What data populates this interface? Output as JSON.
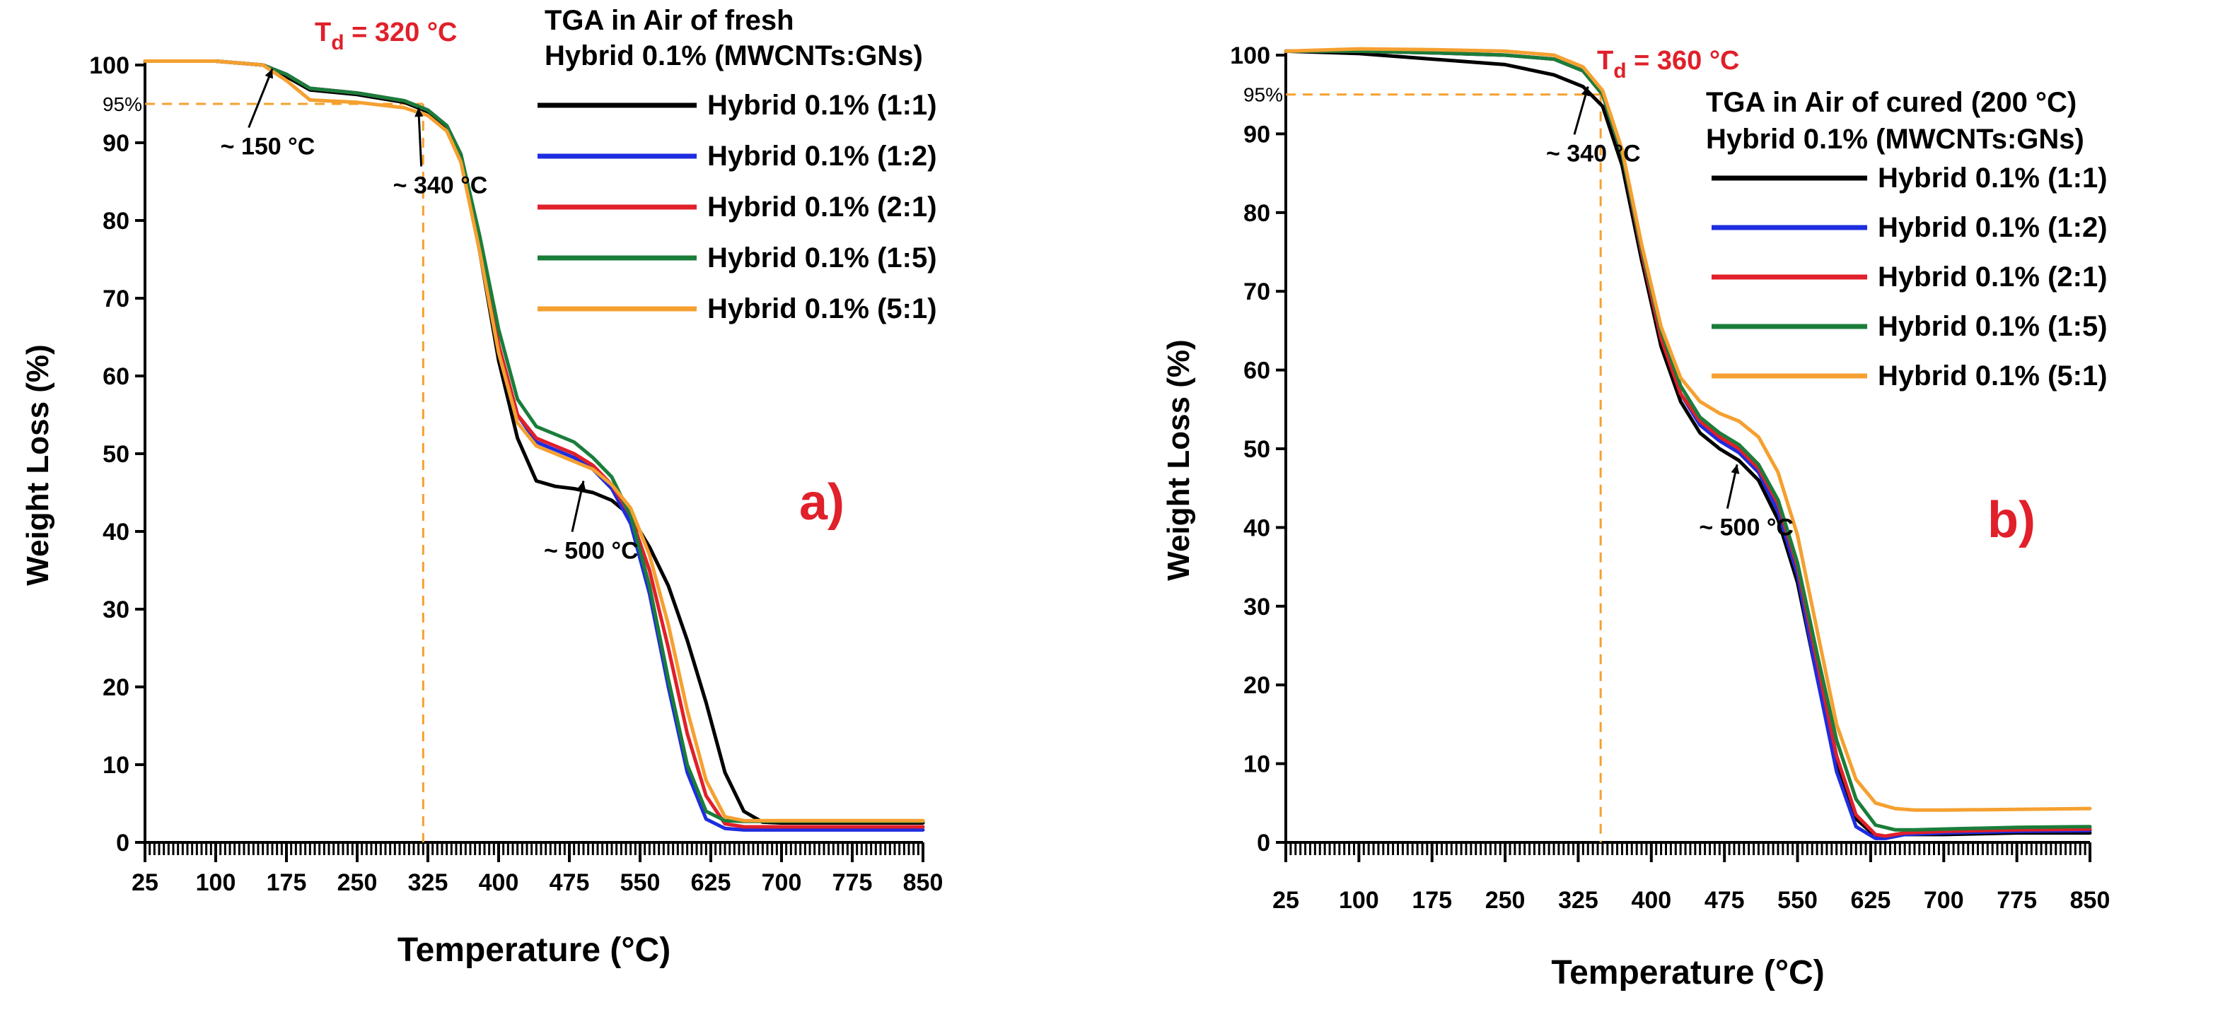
{
  "chart_data": [
    {
      "type": "line",
      "panel": "a)",
      "title": [
        "TGA in Air of fresh",
        "Hybrid 0.1% (MWCNTs:GNs)"
      ],
      "xlabel": "Temperature (°C)",
      "ylabel": "Weight Loss (%)",
      "xlim": [
        25,
        850
      ],
      "ylim": [
        0,
        100
      ],
      "xticks": [
        25,
        100,
        175,
        250,
        325,
        400,
        475,
        550,
        625,
        700,
        775,
        850
      ],
      "xtick_labels": [
        "25",
        "100",
        "175",
        "250",
        "325",
        "400",
        "475",
        "550",
        "625",
        "700",
        "775",
        "850"
      ],
      "yticks": [
        0,
        10,
        20,
        30,
        40,
        50,
        60,
        70,
        80,
        90,
        100
      ],
      "ytick_labels": [
        "0",
        "10",
        "20",
        "30",
        "40",
        "50",
        "60",
        "70",
        "80",
        "90",
        "100"
      ],
      "td_label": "T",
      "td_sub": "d",
      "td_value": " = 320 °C",
      "td_x": 320,
      "threshold_label": "95%",
      "threshold_y": 95,
      "annotations": [
        {
          "text": "~ 150 °C",
          "x": 105,
          "y": 88.5,
          "ax": 160,
          "ay": 99.5
        },
        {
          "text": "~ 340 °C",
          "x": 288,
          "y": 83.5,
          "ax": 315,
          "ay": 94.5
        },
        {
          "text": "~ 500 °C",
          "x": 448,
          "y": 36.5,
          "ax": 490,
          "ay": 46.5
        }
      ],
      "series": [
        {
          "name": "Hybrid 0.1% (1:1)",
          "color": "#000000",
          "x": [
            25,
            100,
            150,
            175,
            200,
            250,
            300,
            325,
            345,
            360,
            380,
            400,
            420,
            440,
            460,
            480,
            500,
            520,
            540,
            560,
            580,
            600,
            620,
            640,
            660,
            680,
            700,
            775,
            850
          ],
          "y": [
            100.5,
            100.5,
            100,
            98.5,
            96.8,
            96.2,
            95.2,
            94,
            92,
            88,
            76,
            62,
            52,
            46.5,
            45.8,
            45.5,
            45,
            44,
            42,
            38,
            33,
            26,
            18,
            9,
            4,
            2.6,
            2.5,
            2.5,
            2.5
          ]
        },
        {
          "name": "Hybrid 0.1% (1:2)",
          "color": "#1e2de0",
          "x": [
            25,
            100,
            150,
            175,
            200,
            250,
            300,
            325,
            345,
            360,
            380,
            400,
            420,
            440,
            460,
            480,
            500,
            520,
            540,
            560,
            580,
            600,
            620,
            640,
            660,
            700,
            775,
            850
          ],
          "y": [
            100.5,
            100.5,
            100,
            98.8,
            97,
            96.4,
            95.4,
            94.2,
            92.2,
            88.5,
            77,
            64,
            55,
            51.5,
            50.5,
            49.5,
            48,
            45.5,
            41,
            32,
            20,
            9,
            3,
            1.8,
            1.6,
            1.6,
            1.6,
            1.6
          ]
        },
        {
          "name": "Hybrid 0.1% (2:1)",
          "color": "#e0202a",
          "x": [
            25,
            100,
            150,
            175,
            200,
            250,
            300,
            325,
            345,
            360,
            380,
            400,
            420,
            440,
            460,
            480,
            500,
            520,
            540,
            560,
            580,
            600,
            620,
            640,
            660,
            700,
            775,
            850
          ],
          "y": [
            100.5,
            100.5,
            100,
            98.8,
            97,
            96.4,
            95.4,
            94.2,
            92.2,
            88.5,
            77,
            64,
            55,
            52,
            51,
            50,
            48.5,
            46,
            42,
            35,
            25,
            14,
            6,
            2.4,
            2,
            2,
            2,
            2
          ]
        },
        {
          "name": "Hybrid 0.1% (1:5)",
          "color": "#1a7d3a",
          "x": [
            25,
            100,
            150,
            175,
            200,
            250,
            300,
            325,
            345,
            360,
            380,
            400,
            420,
            440,
            460,
            480,
            500,
            520,
            540,
            560,
            580,
            600,
            620,
            640,
            660,
            700,
            775,
            850
          ],
          "y": [
            100.5,
            100.5,
            100,
            98.8,
            97,
            96.4,
            95.4,
            94.2,
            92.2,
            88.5,
            78,
            66,
            57,
            53.5,
            52.5,
            51.5,
            49.5,
            47,
            42,
            33,
            21,
            10,
            4,
            2.8,
            2.7,
            2.7,
            2.7,
            2.7
          ]
        },
        {
          "name": "Hybrid 0.1% (5:1)",
          "color": "#f5a030",
          "x": [
            25,
            100,
            150,
            175,
            200,
            250,
            300,
            325,
            345,
            360,
            380,
            400,
            420,
            440,
            460,
            480,
            500,
            520,
            540,
            560,
            580,
            600,
            620,
            640,
            660,
            700,
            775,
            850
          ],
          "y": [
            100.5,
            100.5,
            100,
            98,
            95.5,
            95.2,
            94.5,
            93.5,
            91.5,
            87.5,
            76,
            63,
            54,
            51,
            50,
            49,
            48,
            46,
            43,
            37,
            28,
            17,
            8,
            3.3,
            2.8,
            2.8,
            2.8,
            2.8
          ]
        }
      ]
    },
    {
      "type": "line",
      "panel": "b)",
      "title": [
        "TGA in Air of cured (200 °C)",
        "Hybrid 0.1% (MWCNTs:GNs)"
      ],
      "xlabel": "Temperature (°C)",
      "ylabel": "Weight Loss (%)",
      "xlim": [
        25,
        850
      ],
      "ylim": [
        0,
        100
      ],
      "xticks": [
        25,
        100,
        175,
        250,
        325,
        400,
        475,
        550,
        625,
        700,
        775,
        850
      ],
      "xtick_labels": [
        "25",
        "100",
        "175",
        "250",
        "325",
        "400",
        "475",
        "550",
        "625",
        "700",
        "775",
        "850"
      ],
      "yticks": [
        0,
        10,
        20,
        30,
        40,
        50,
        60,
        70,
        80,
        90,
        100
      ],
      "ytick_labels": [
        "0",
        "10",
        "20",
        "30",
        "40",
        "50",
        "60",
        "70",
        "80",
        "90",
        "100"
      ],
      "td_label": "T",
      "td_sub": "d",
      "td_value": " = 360 °C",
      "td_x": 348,
      "threshold_label": "95%",
      "threshold_y": 95,
      "annotations": [
        {
          "text": "~ 340 °C",
          "x": 292,
          "y": 86.5,
          "ax": 335,
          "ay": 96
        },
        {
          "text": "~ 500 °C",
          "x": 449,
          "y": 39,
          "ax": 488,
          "ay": 48
        }
      ],
      "series": [
        {
          "name": "Hybrid 0.1% (1:1)",
          "color": "#000000",
          "x": [
            25,
            100,
            175,
            250,
            300,
            330,
            350,
            370,
            390,
            410,
            430,
            450,
            470,
            490,
            510,
            530,
            550,
            570,
            590,
            610,
            630,
            640,
            660,
            700,
            775,
            850
          ],
          "y": [
            100.5,
            100.2,
            99.5,
            98.8,
            97.5,
            96,
            93.5,
            86,
            74,
            63,
            56,
            52,
            50,
            48.5,
            46,
            41,
            33,
            21,
            10,
            3,
            0.8,
            0.8,
            1,
            1,
            1.2,
            1.2
          ]
        },
        {
          "name": "Hybrid 0.1% (1:2)",
          "color": "#1e2de0",
          "x": [
            25,
            100,
            175,
            250,
            300,
            330,
            350,
            370,
            390,
            410,
            430,
            450,
            470,
            490,
            510,
            530,
            550,
            570,
            590,
            610,
            630,
            640,
            660,
            700,
            775,
            850
          ],
          "y": [
            100.5,
            100.5,
            100.3,
            100,
            99.5,
            98,
            95,
            87.5,
            75,
            64,
            57,
            53,
            51,
            49.5,
            47,
            42,
            34,
            21,
            9,
            2,
            0.5,
            0.5,
            1,
            1.2,
            1.4,
            1.5
          ]
        },
        {
          "name": "Hybrid 0.1% (2:1)",
          "color": "#e0202a",
          "x": [
            25,
            100,
            175,
            250,
            300,
            330,
            350,
            370,
            390,
            410,
            430,
            450,
            470,
            490,
            510,
            530,
            550,
            570,
            590,
            610,
            630,
            640,
            660,
            700,
            775,
            850
          ],
          "y": [
            100.5,
            100.5,
            100.3,
            100,
            99.5,
            98,
            95,
            87.5,
            75,
            64,
            57,
            53.5,
            51.5,
            50,
            47.5,
            43,
            35,
            23,
            11,
            3.5,
            1,
            0.8,
            1.2,
            1.4,
            1.6,
            1.7
          ]
        },
        {
          "name": "Hybrid 0.1% (1:5)",
          "color": "#1a7d3a",
          "x": [
            25,
            100,
            175,
            250,
            300,
            330,
            350,
            370,
            390,
            410,
            430,
            450,
            470,
            490,
            510,
            530,
            550,
            570,
            590,
            610,
            630,
            650,
            670,
            700,
            775,
            850
          ],
          "y": [
            100.5,
            100.5,
            100.3,
            100,
            99.5,
            98,
            95,
            87.5,
            75.5,
            65,
            58,
            54,
            52,
            50.5,
            48,
            43.5,
            35.5,
            24,
            13,
            5.5,
            2.2,
            1.6,
            1.6,
            1.7,
            1.9,
            2
          ]
        },
        {
          "name": "Hybrid 0.1% (5:1)",
          "color": "#f5a030",
          "x": [
            25,
            100,
            175,
            250,
            300,
            330,
            350,
            370,
            390,
            410,
            430,
            450,
            470,
            490,
            510,
            530,
            550,
            570,
            590,
            610,
            630,
            650,
            670,
            700,
            775,
            850
          ],
          "y": [
            100.5,
            100.8,
            100.7,
            100.5,
            100,
            98.5,
            95.5,
            88,
            76,
            65.5,
            59,
            56,
            54.5,
            53.5,
            51.5,
            47,
            39,
            27,
            15,
            8,
            5,
            4.3,
            4.1,
            4.1,
            4.2,
            4.3
          ]
        }
      ]
    }
  ]
}
